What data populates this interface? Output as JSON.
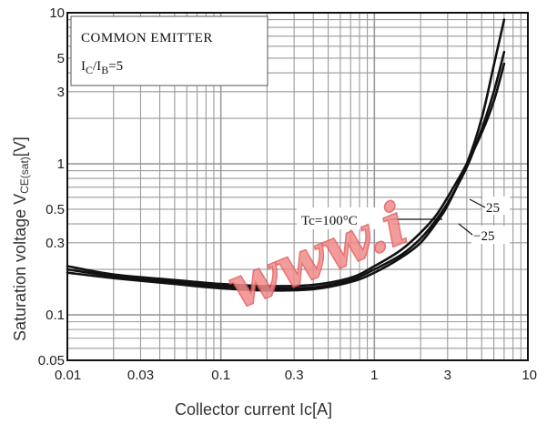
{
  "chart_data": {
    "type": "line",
    "title": "",
    "annotation_box": {
      "line1": "COMMON EMITTER",
      "line2_main_i": "I",
      "line2_sub_c": "C",
      "line2_slash_i": "/I",
      "line2_sub_b": "B",
      "line2_tail": "=5"
    },
    "xlabel": "Collector current   Ic[A]",
    "ylabel_main": "Saturation voltage  V",
    "ylabel_sub": "CE(sat)",
    "ylabel_unit": "[V]",
    "x_scale": "log",
    "y_scale": "log",
    "xlim": [
      0.01,
      10
    ],
    "ylim": [
      0.05,
      10
    ],
    "x_ticks": [
      0.01,
      0.03,
      0.1,
      0.3,
      1,
      3,
      10
    ],
    "x_tick_labels": [
      "0.01",
      "0.03",
      "0.1",
      "0.3",
      "1",
      "3",
      "10"
    ],
    "y_ticks": [
      0.05,
      0.1,
      0.3,
      0.5,
      1,
      3,
      5,
      10
    ],
    "y_tick_labels": [
      "0.05",
      "0.1",
      "0.3",
      "0.5",
      "1",
      "3",
      "5",
      "10"
    ],
    "grid": true,
    "series": [
      {
        "name": "Tc=100°C",
        "x": [
          0.01,
          0.02,
          0.05,
          0.1,
          0.2,
          0.4,
          0.7,
          1,
          1.5,
          2,
          2.5,
          3,
          4,
          5,
          6,
          7
        ],
        "y": [
          0.19,
          0.175,
          0.16,
          0.15,
          0.145,
          0.148,
          0.165,
          0.19,
          0.24,
          0.3,
          0.4,
          0.53,
          1.0,
          2.0,
          4.5,
          9.0
        ]
      },
      {
        "name": "25",
        "x": [
          0.01,
          0.02,
          0.05,
          0.1,
          0.2,
          0.4,
          0.7,
          1,
          1.5,
          2,
          2.5,
          3,
          4,
          5,
          6,
          7
        ],
        "y": [
          0.2,
          0.18,
          0.165,
          0.155,
          0.15,
          0.152,
          0.17,
          0.2,
          0.25,
          0.32,
          0.42,
          0.55,
          0.95,
          1.7,
          3.0,
          5.5
        ]
      },
      {
        "name": "−25",
        "x": [
          0.01,
          0.02,
          0.05,
          0.1,
          0.2,
          0.4,
          0.7,
          1,
          1.5,
          2,
          2.5,
          3,
          4,
          5,
          6,
          7
        ],
        "y": [
          0.21,
          0.185,
          0.17,
          0.16,
          0.155,
          0.158,
          0.176,
          0.21,
          0.27,
          0.35,
          0.45,
          0.6,
          1.0,
          1.6,
          2.6,
          4.6
        ]
      }
    ],
    "curve_labels": {
      "tc100": "Tc=100°C",
      "t25": "25",
      "tm25": "−25"
    },
    "line_color": "#111111",
    "grid_color": "#9a9a9a"
  },
  "watermark": {
    "text": "www.i",
    "color": "#f28b8b"
  }
}
